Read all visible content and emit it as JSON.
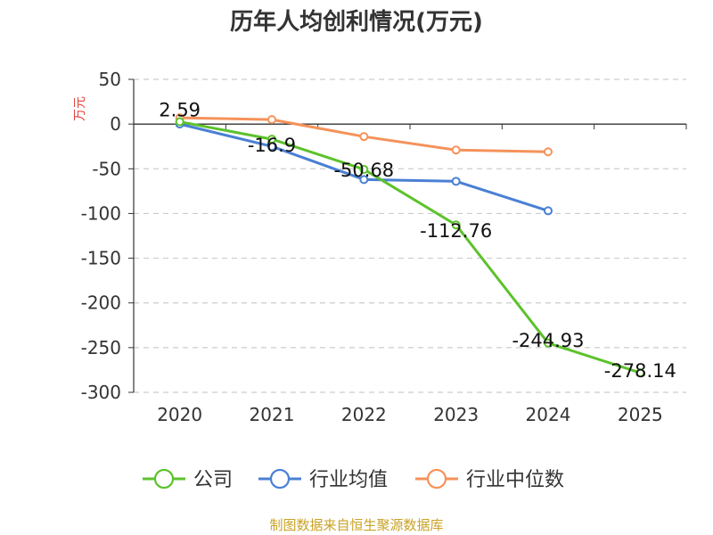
{
  "chart_data": {
    "type": "line",
    "title": "历年人均创利情况(万元)",
    "ylabel": "万元",
    "categories": [
      "2020",
      "2021",
      "2022",
      "2023",
      "2024",
      "2025"
    ],
    "yticks": [
      "50",
      "0",
      "-50",
      "-100",
      "-150",
      "-200",
      "-250",
      "-300"
    ],
    "ylim": [
      -300,
      50
    ],
    "grid": true,
    "series": [
      {
        "name": "公司",
        "color": "#5cc22c",
        "values": [
          2.59,
          -16.9,
          -50.68,
          -112.76,
          -244.93,
          -278.14
        ],
        "labels": [
          "2.59",
          "-16.9",
          "-50.68",
          "-112.76",
          "-244.93",
          "-278.14"
        ]
      },
      {
        "name": "行业均值",
        "color": "#4a80d4",
        "values": [
          0,
          -25,
          -62,
          -64,
          -97,
          null
        ]
      },
      {
        "name": "行业中位数",
        "color": "#f5925a",
        "values": [
          7,
          5,
          -14,
          -29,
          -31,
          null
        ]
      }
    ],
    "legend_position": "bottom",
    "source": "制图数据来自恒生聚源数据库",
    "colors": {
      "source": "#c9a227",
      "ylabel": "#e0453d",
      "axis": "#333333",
      "grid": "#cccccc"
    }
  }
}
